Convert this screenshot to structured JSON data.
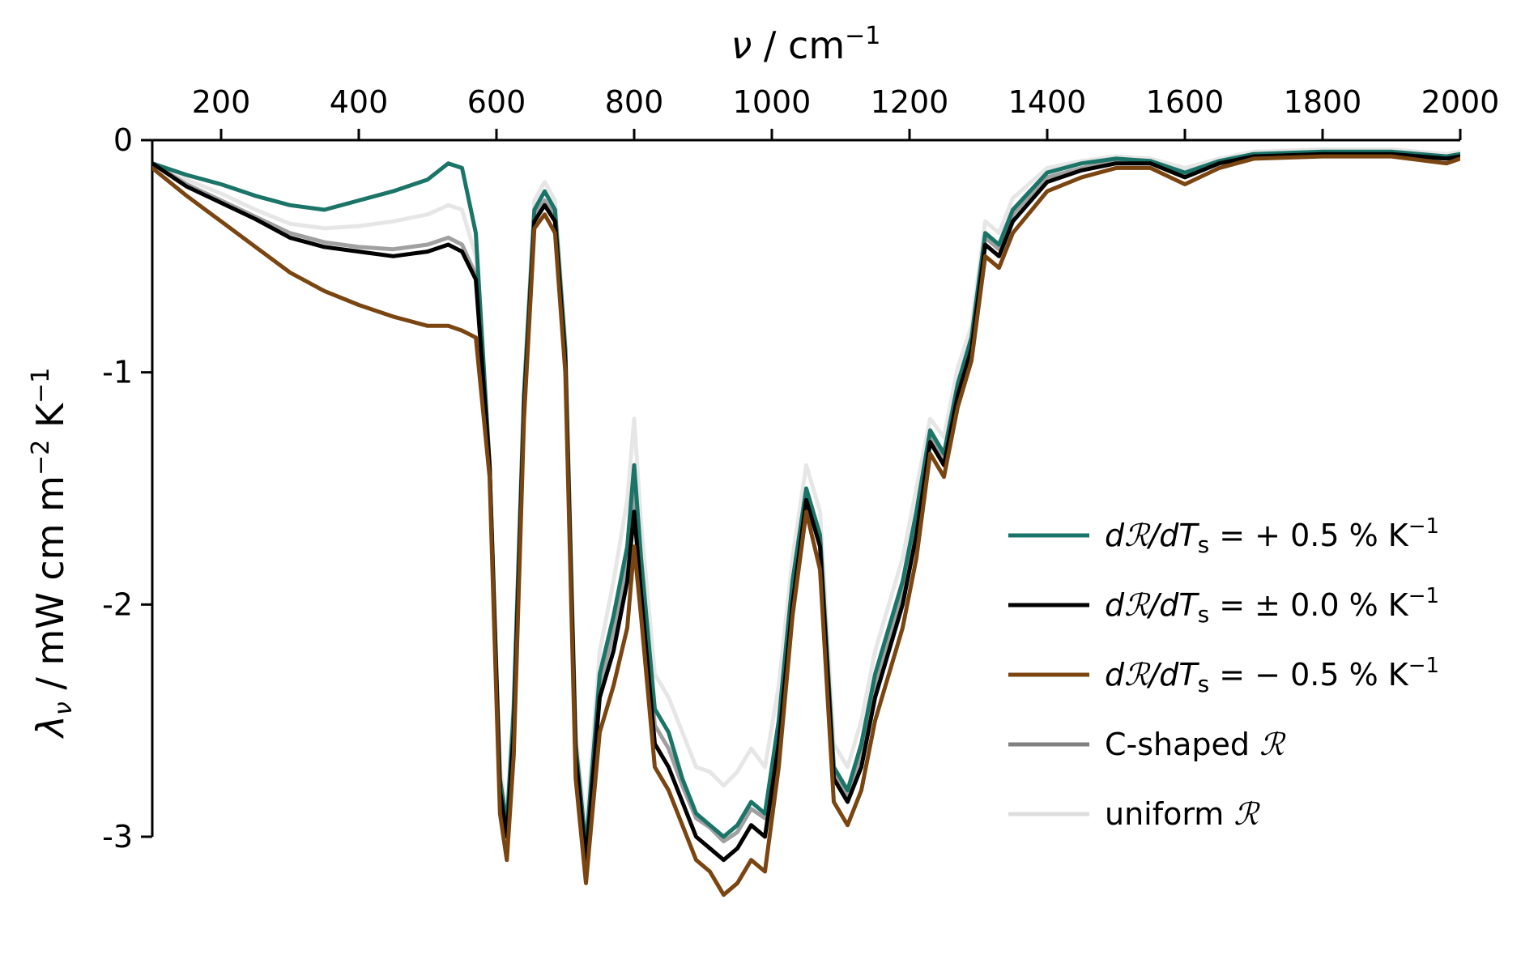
{
  "chart_data": {
    "type": "line",
    "xlabel_symbol": "ν",
    "xlabel_unit": " / cm",
    "xlabel_exp": "−1",
    "ylabel_symbol": "λ",
    "ylabel_sub": "ν",
    "ylabel_unit_a": " / mW cm m",
    "ylabel_exp_a": "−2",
    "ylabel_unit_b": " K",
    "ylabel_exp_b": "−1",
    "xlim": [
      100,
      2000
    ],
    "ylim": [
      -3.45,
      0
    ],
    "x_axis_position": "top",
    "grid": false,
    "legend_position": "center-right",
    "x_ticks": [
      "200",
      "400",
      "600",
      "800",
      "1000",
      "1200",
      "1400",
      "1600",
      "1800",
      "2000"
    ],
    "y_ticks": [
      "0",
      "-1",
      "-2",
      "-3"
    ],
    "x": [
      100,
      150,
      200,
      250,
      300,
      350,
      400,
      450,
      500,
      530,
      550,
      570,
      590,
      605,
      615,
      625,
      640,
      655,
      670,
      685,
      700,
      715,
      730,
      750,
      770,
      790,
      800,
      810,
      830,
      850,
      870,
      890,
      910,
      930,
      950,
      970,
      990,
      1010,
      1030,
      1050,
      1070,
      1090,
      1110,
      1130,
      1150,
      1170,
      1190,
      1210,
      1230,
      1250,
      1270,
      1290,
      1310,
      1330,
      1350,
      1400,
      1450,
      1500,
      1550,
      1600,
      1650,
      1700,
      1800,
      1900,
      1980,
      2000
    ],
    "series": [
      {
        "legend_prefix": "d",
        "legend_mid": "/dT",
        "legend_sub": "s",
        "legend_value": " = + 0.5 % K",
        "legend_exp": "−1",
        "color": "#1b7468",
        "style": "primary",
        "y": [
          -0.1,
          -0.15,
          -0.19,
          -0.24,
          -0.28,
          -0.3,
          -0.26,
          -0.22,
          -0.17,
          -0.1,
          -0.12,
          -0.4,
          -1.4,
          -2.75,
          -2.95,
          -2.45,
          -1.1,
          -0.3,
          -0.22,
          -0.3,
          -0.9,
          -2.6,
          -3.05,
          -2.3,
          -2.05,
          -1.75,
          -1.4,
          -1.8,
          -2.45,
          -2.55,
          -2.75,
          -2.9,
          -2.95,
          -3.0,
          -2.95,
          -2.85,
          -2.9,
          -2.5,
          -1.9,
          -1.5,
          -1.7,
          -2.7,
          -2.8,
          -2.6,
          -2.3,
          -2.1,
          -1.9,
          -1.6,
          -1.25,
          -1.35,
          -1.05,
          -0.85,
          -0.4,
          -0.45,
          -0.3,
          -0.14,
          -0.1,
          -0.08,
          -0.09,
          -0.14,
          -0.09,
          -0.06,
          -0.05,
          -0.05,
          -0.07,
          -0.06
        ]
      },
      {
        "legend_prefix": "d",
        "legend_mid": "/dT",
        "legend_sub": "s",
        "legend_value": " = ± 0.0 % K",
        "legend_exp": "−1",
        "color": "#000000",
        "style": "primary",
        "y": [
          -0.1,
          -0.2,
          -0.27,
          -0.34,
          -0.42,
          -0.46,
          -0.48,
          -0.5,
          -0.48,
          -0.45,
          -0.48,
          -0.6,
          -1.4,
          -2.8,
          -3.0,
          -2.55,
          -1.15,
          -0.35,
          -0.28,
          -0.35,
          -0.95,
          -2.65,
          -3.1,
          -2.4,
          -2.2,
          -1.9,
          -1.6,
          -1.95,
          -2.6,
          -2.7,
          -2.85,
          -3.0,
          -3.05,
          -3.1,
          -3.05,
          -2.95,
          -3.0,
          -2.6,
          -2.0,
          -1.55,
          -1.75,
          -2.75,
          -2.85,
          -2.7,
          -2.4,
          -2.2,
          -2.0,
          -1.7,
          -1.3,
          -1.4,
          -1.1,
          -0.9,
          -0.45,
          -0.5,
          -0.35,
          -0.18,
          -0.13,
          -0.1,
          -0.1,
          -0.16,
          -0.1,
          -0.07,
          -0.06,
          -0.06,
          -0.08,
          -0.07
        ]
      },
      {
        "legend_prefix": "d",
        "legend_mid": "/dT",
        "legend_sub": "s",
        "legend_value": " = − 0.5 % K",
        "legend_exp": "−1",
        "color": "#7a4510",
        "style": "primary",
        "y": [
          -0.12,
          -0.24,
          -0.35,
          -0.46,
          -0.57,
          -0.65,
          -0.71,
          -0.76,
          -0.8,
          -0.8,
          -0.82,
          -0.85,
          -1.45,
          -2.9,
          -3.1,
          -2.65,
          -1.2,
          -0.38,
          -0.32,
          -0.4,
          -1.0,
          -2.75,
          -3.2,
          -2.55,
          -2.35,
          -2.1,
          -1.75,
          -2.05,
          -2.7,
          -2.8,
          -2.95,
          -3.1,
          -3.15,
          -3.25,
          -3.2,
          -3.1,
          -3.15,
          -2.7,
          -2.05,
          -1.6,
          -1.85,
          -2.85,
          -2.95,
          -2.8,
          -2.5,
          -2.3,
          -2.1,
          -1.8,
          -1.35,
          -1.45,
          -1.15,
          -0.95,
          -0.5,
          -0.55,
          -0.4,
          -0.22,
          -0.16,
          -0.12,
          -0.12,
          -0.19,
          -0.12,
          -0.08,
          -0.07,
          -0.07,
          -0.1,
          -0.08
        ]
      },
      {
        "legend_label": "C-shaped ",
        "legend_symbol": "ℛ",
        "color": "#808080",
        "style": "secondary",
        "y": [
          -0.1,
          -0.19,
          -0.26,
          -0.33,
          -0.4,
          -0.44,
          -0.46,
          -0.47,
          -0.45,
          -0.42,
          -0.45,
          -0.58,
          -1.4,
          -2.78,
          -2.98,
          -2.52,
          -1.13,
          -0.33,
          -0.26,
          -0.33,
          -0.93,
          -2.62,
          -3.07,
          -2.35,
          -2.12,
          -1.82,
          -1.5,
          -1.88,
          -2.52,
          -2.62,
          -2.78,
          -2.92,
          -2.96,
          -3.02,
          -2.98,
          -2.88,
          -2.92,
          -2.54,
          -1.96,
          -1.52,
          -1.72,
          -2.72,
          -2.82,
          -2.64,
          -2.34,
          -2.14,
          -1.94,
          -1.64,
          -1.28,
          -1.37,
          -1.07,
          -0.87,
          -0.42,
          -0.47,
          -0.32,
          -0.16,
          -0.12,
          -0.09,
          -0.1,
          -0.15,
          -0.1,
          -0.07,
          -0.06,
          -0.06,
          -0.08,
          -0.07
        ]
      },
      {
        "legend_label": "uniform ",
        "legend_symbol": "ℛ",
        "color": "#dddddd",
        "style": "secondary",
        "y": [
          -0.1,
          -0.17,
          -0.23,
          -0.3,
          -0.36,
          -0.38,
          -0.37,
          -0.35,
          -0.32,
          -0.28,
          -0.3,
          -0.5,
          -1.38,
          -2.7,
          -2.92,
          -2.4,
          -1.05,
          -0.26,
          -0.18,
          -0.26,
          -0.85,
          -2.55,
          -2.98,
          -2.2,
          -1.9,
          -1.55,
          -1.2,
          -1.65,
          -2.3,
          -2.4,
          -2.55,
          -2.7,
          -2.72,
          -2.78,
          -2.72,
          -2.62,
          -2.7,
          -2.35,
          -1.8,
          -1.4,
          -1.6,
          -2.6,
          -2.7,
          -2.5,
          -2.2,
          -2.0,
          -1.8,
          -1.5,
          -1.2,
          -1.28,
          -0.98,
          -0.8,
          -0.35,
          -0.4,
          -0.25,
          -0.12,
          -0.09,
          -0.07,
          -0.08,
          -0.12,
          -0.08,
          -0.05,
          -0.04,
          -0.04,
          -0.06,
          -0.05
        ]
      }
    ]
  }
}
